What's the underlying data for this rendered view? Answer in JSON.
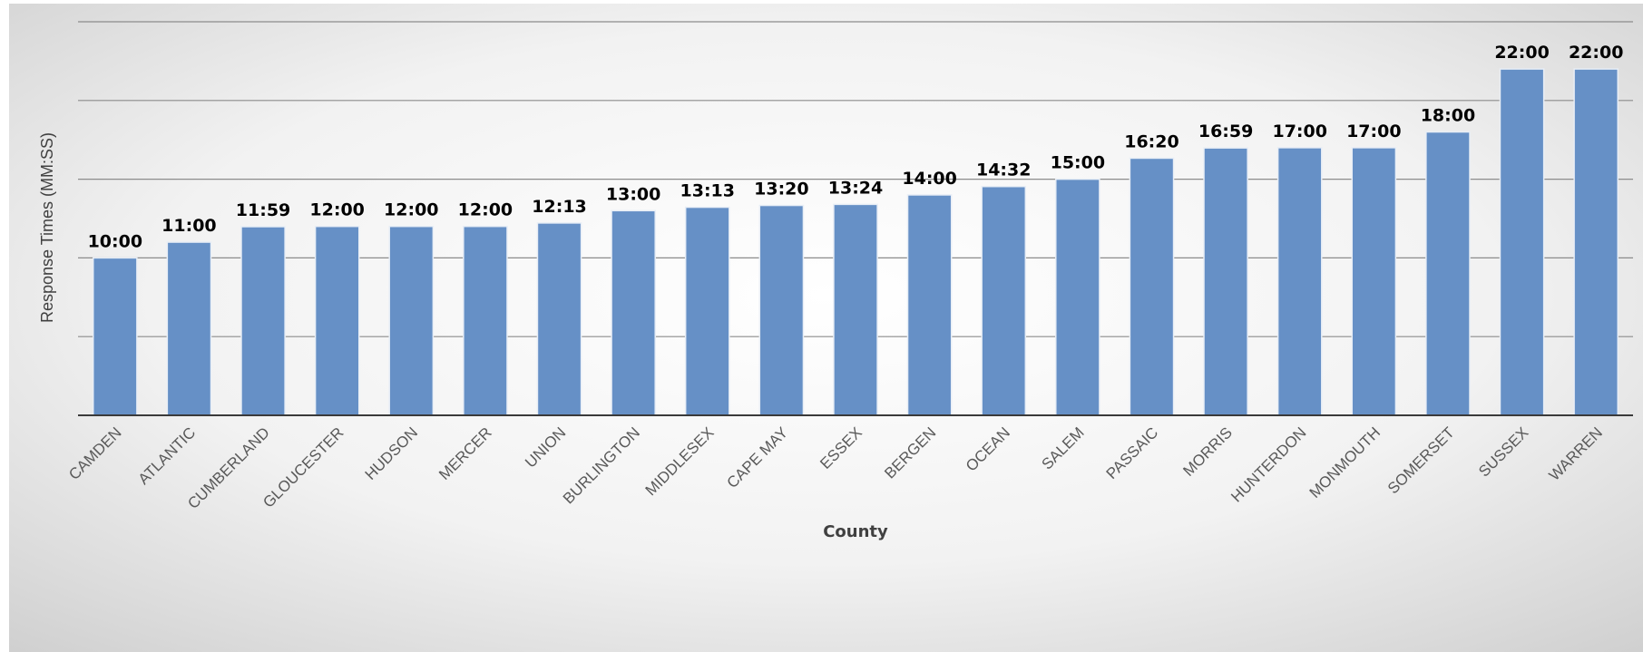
{
  "chart_data": {
    "type": "bar",
    "title": "",
    "xlabel": "County",
    "ylabel": "Response Times (MM:SS)",
    "ylim": [
      0,
      25
    ],
    "y_gridline_step": 5,
    "y_tick_labels_shown": false,
    "grid": true,
    "legend": "none",
    "categories": [
      "CAMDEN",
      "ATLANTIC",
      "CUMBERLAND",
      "GLOUCESTER",
      "HUDSON",
      "MERCER",
      "UNION",
      "BURLINGTON",
      "MIDDLESEX",
      "CAPE MAY",
      "ESSEX",
      "BERGEN",
      "OCEAN",
      "SALEM",
      "PASSAIC",
      "MORRIS",
      "HUNTERDON",
      "MONMOUTH",
      "SOMERSET",
      "SUSSEX",
      "WARREN"
    ],
    "values": [
      10.0,
      11.0,
      11.983,
      12.0,
      12.0,
      12.0,
      12.217,
      13.0,
      13.217,
      13.333,
      13.4,
      14.0,
      14.533,
      15.0,
      16.333,
      16.983,
      17.0,
      17.0,
      18.0,
      22.0,
      22.0
    ],
    "data_labels": [
      "10:00",
      "11:00",
      "11:59",
      "12:00",
      "12:00",
      "12:00",
      "12:13",
      "13:00",
      "13:13",
      "13:20",
      "13:24",
      "14:00",
      "14:32",
      "15:00",
      "16:20",
      "16:59",
      "17:00",
      "17:00",
      "18:00",
      "22:00",
      "22:00"
    ],
    "colors": {
      "bar": "#6690c6",
      "bar_edge": "#e8eef6",
      "gridline": "#8c8c8c",
      "axis": "#3a3a3a"
    }
  }
}
